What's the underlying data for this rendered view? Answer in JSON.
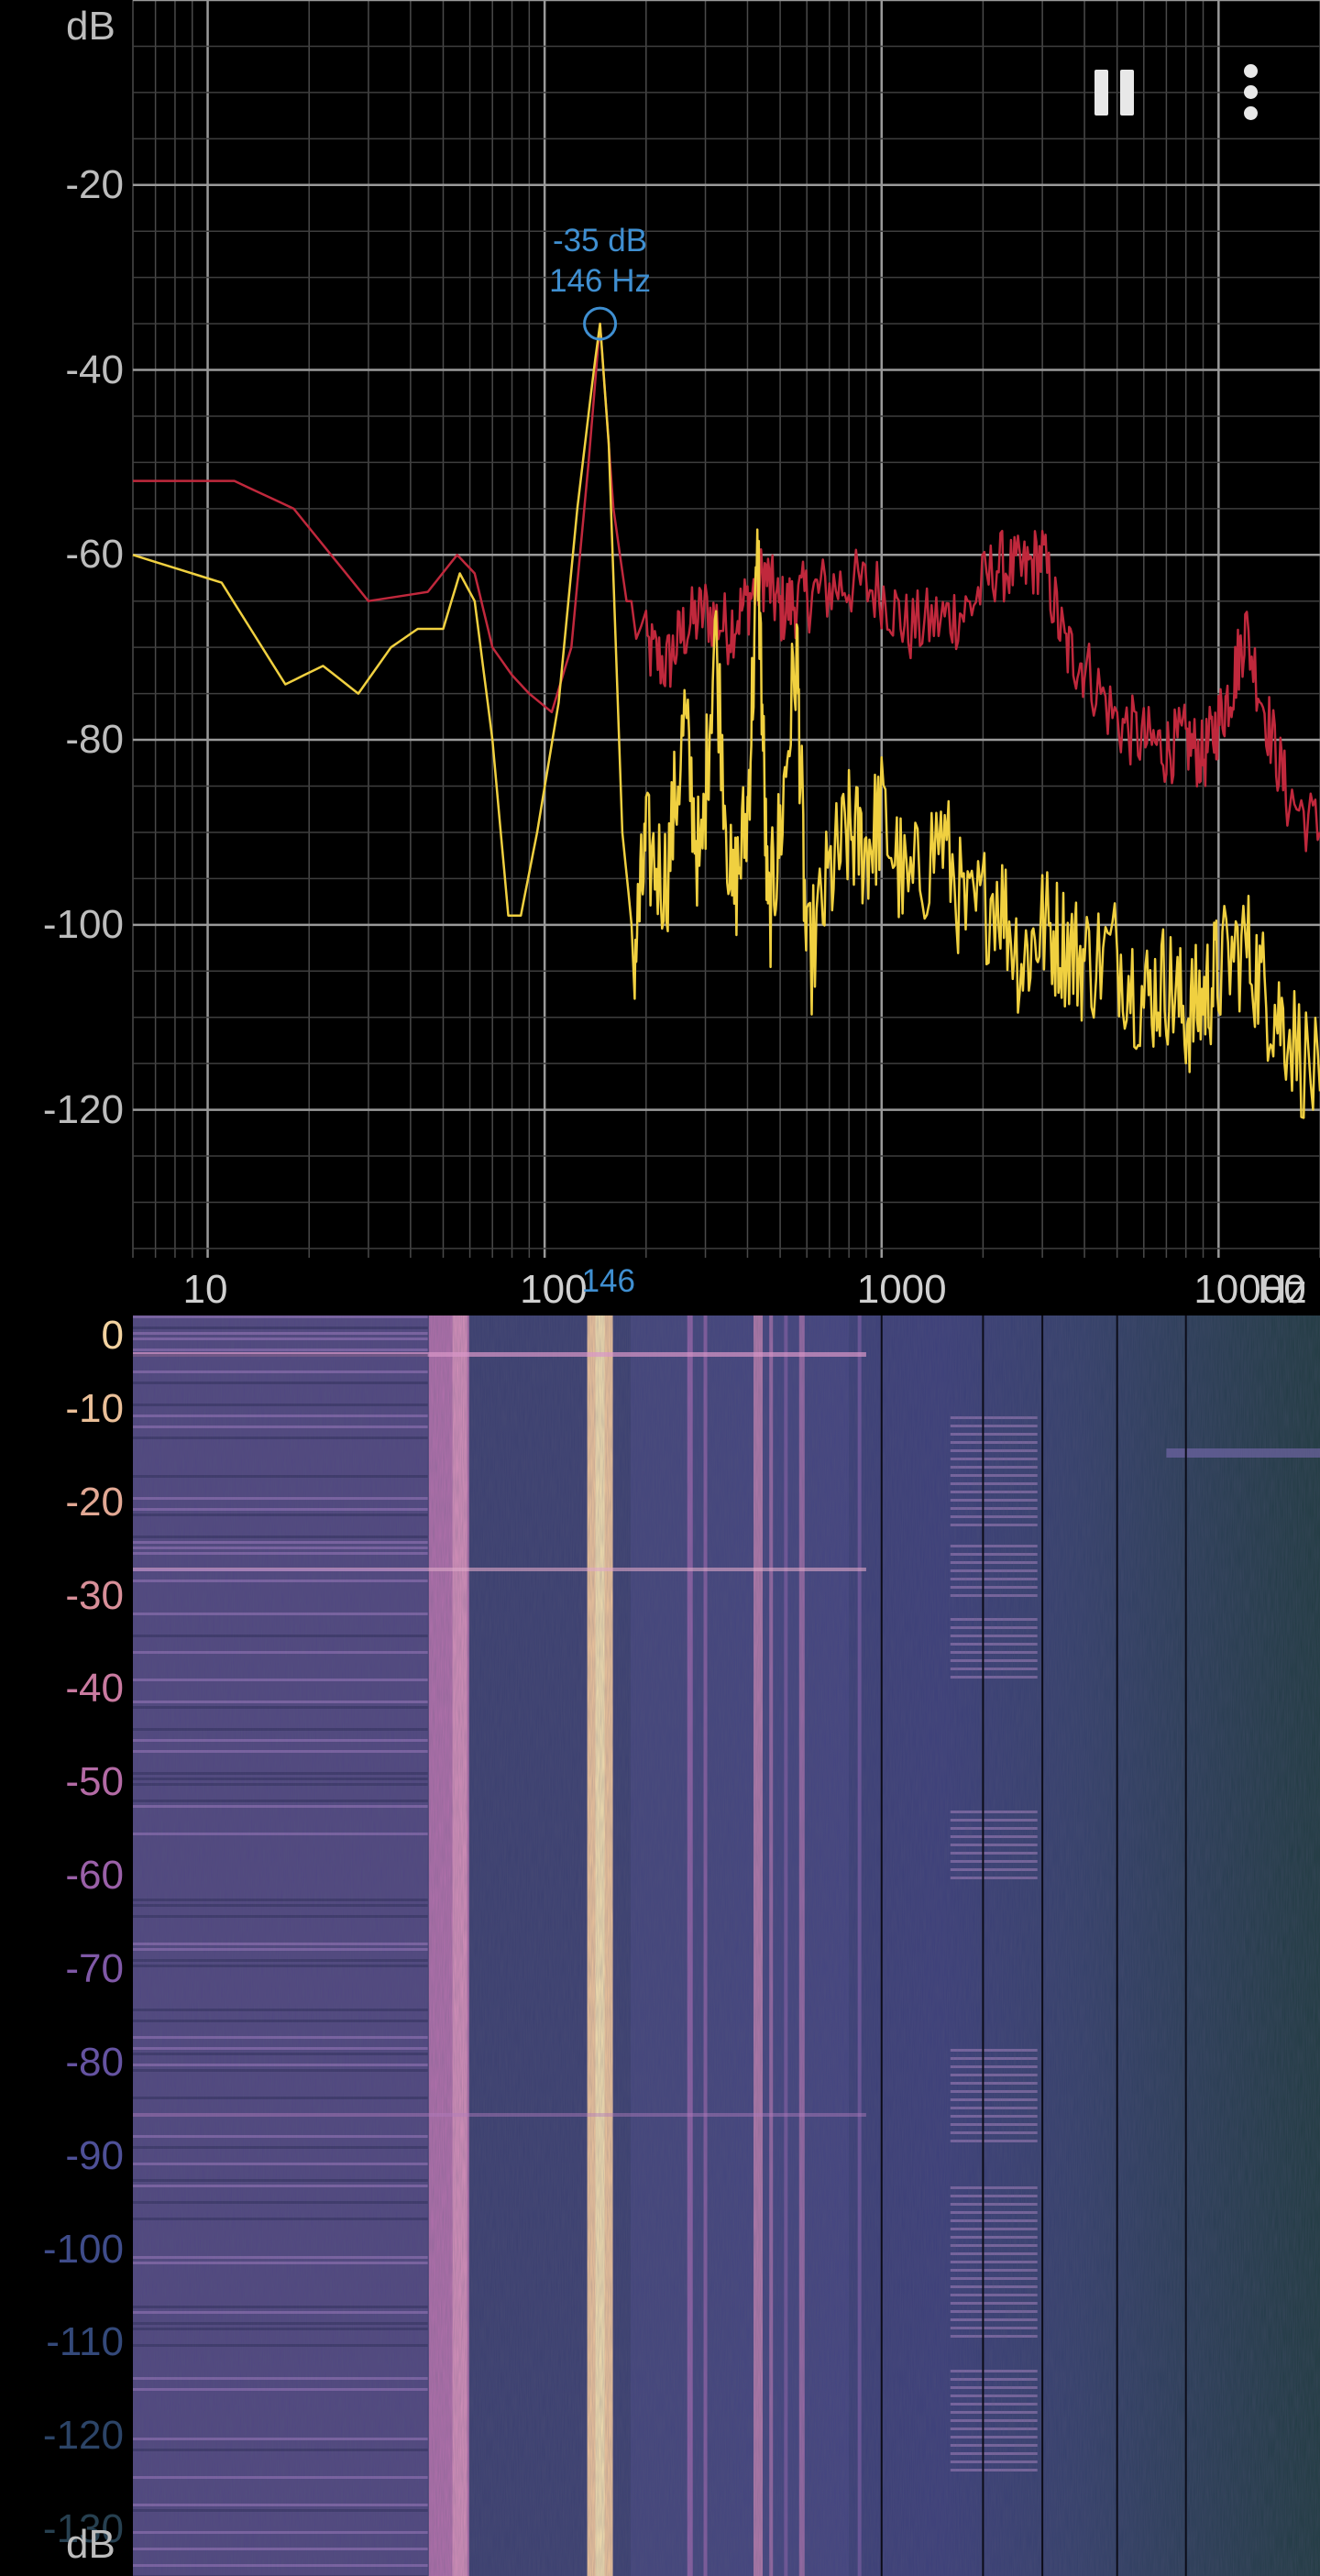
{
  "toolbar": {
    "pause_icon": "pause-icon",
    "more_icon": "more-vert-icon"
  },
  "spectrum": {
    "y_unit": "dB",
    "x_unit": "Hz",
    "peak": {
      "db_label": "-35 dB",
      "hz_label": "146 Hz",
      "freq_marker_label": "146",
      "freq_hz": 146,
      "db": -35
    },
    "y_ticks": [
      "-20",
      "-40",
      "-60",
      "-80",
      "-100",
      "-120"
    ],
    "x_ticks": [
      "10",
      "100",
      "1000",
      "10000"
    ]
  },
  "spectrogram": {
    "y_unit": "dB",
    "y_ticks": [
      "0",
      "-10",
      "-20",
      "-30",
      "-40",
      "-50",
      "-60",
      "-70",
      "-80",
      "-90",
      "-100",
      "-110",
      "-120",
      "-130"
    ],
    "colors": [
      "#f3d3a0",
      "#eabf98",
      "#e2a894",
      "#d88f99",
      "#c97aa0",
      "#b36aa5",
      "#9a60a8",
      "#7f58a6",
      "#6553a1",
      "#4e5097",
      "#3f4c8a",
      "#34497a",
      "#2c4467",
      "#274050"
    ]
  },
  "chart_data": [
    {
      "type": "line",
      "x_scale": "log",
      "xlim": [
        6,
        20000
      ],
      "ylim": [
        -136,
        0
      ],
      "x_ticks": [
        10,
        100,
        1000,
        10000
      ],
      "y_ticks": [
        -20,
        -40,
        -60,
        -80,
        -100,
        -120
      ],
      "grid": true,
      "series": [
        {
          "color": "#c0283c",
          "x": [
            6,
            12,
            18,
            30,
            45,
            55,
            62,
            70,
            80,
            90,
            105,
            120,
            135,
            146,
            160,
            175,
            200,
            230,
            260,
            300,
            350,
            400,
            450,
            500,
            560,
            650,
            800,
            1000,
            1200,
            1500,
            1800,
            2200,
            2600,
            3000,
            3500,
            4000,
            5000,
            6000,
            7000,
            8000,
            9000,
            10000,
            11000,
            12000,
            14000,
            16000,
            20000
          ],
          "y": [
            -52,
            -52,
            -55,
            -65,
            -64,
            -60,
            -62,
            -70,
            -73,
            -75,
            -77,
            -70,
            -50,
            -35,
            -55,
            -65,
            -70,
            -72,
            -68,
            -66,
            -68,
            -65,
            -62,
            -66,
            -65,
            -64,
            -63,
            -64,
            -68,
            -67,
            -66,
            -61,
            -62,
            -60,
            -70,
            -72,
            -78,
            -80,
            -81,
            -80,
            -82,
            -78,
            -74,
            -68,
            -78,
            -86,
            -90
          ]
        },
        {
          "color": "#f0d040",
          "x": [
            6,
            11,
            17,
            22,
            28,
            35,
            42,
            50,
            56,
            62,
            70,
            78,
            85,
            95,
            110,
            125,
            140,
            146,
            155,
            170,
            185,
            200,
            230,
            260,
            290,
            320,
            360,
            400,
            430,
            460,
            500,
            560,
            600,
            700,
            800,
            900,
            1000,
            1200,
            1500,
            1800,
            2200,
            2600,
            3000,
            3500,
            4000,
            5000,
            6000,
            7000,
            8000,
            9000,
            10000,
            12000,
            14000,
            16000,
            20000
          ],
          "y": [
            -60,
            -63,
            -74,
            -72,
            -75,
            -70,
            -68,
            -68,
            -62,
            -65,
            -80,
            -99,
            -99,
            -90,
            -76,
            -55,
            -40,
            -35,
            -48,
            -90,
            -103,
            -92,
            -95,
            -78,
            -95,
            -68,
            -98,
            -88,
            -60,
            -100,
            -90,
            -70,
            -105,
            -95,
            -90,
            -92,
            -88,
            -97,
            -90,
            -100,
            -96,
            -104,
            -100,
            -102,
            -104,
            -103,
            -108,
            -106,
            -110,
            -108,
            -105,
            -102,
            -108,
            -111,
            -118
          ]
        }
      ],
      "peak_annotation": {
        "x": 146,
        "y": -35
      }
    },
    {
      "type": "heatmap",
      "x_scale": "log",
      "y_ticks": [
        0,
        -10,
        -20,
        -30,
        -40,
        -50,
        -60,
        -70,
        -80,
        -90,
        -100,
        -110,
        -120,
        -130
      ],
      "ylim": [
        -135,
        0
      ]
    }
  ]
}
